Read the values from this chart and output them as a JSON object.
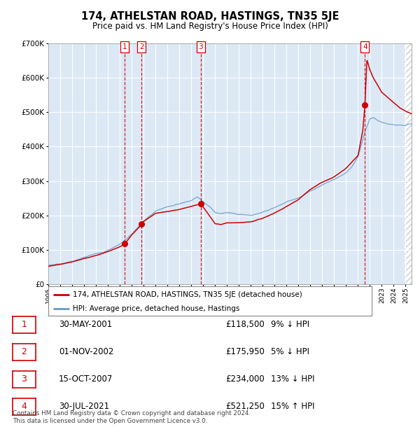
{
  "title": "174, ATHELSTAN ROAD, HASTINGS, TN35 5JE",
  "subtitle": "Price paid vs. HM Land Registry's House Price Index (HPI)",
  "hpi_label": "HPI: Average price, detached house, Hastings",
  "property_label": "174, ATHELSTAN ROAD, HASTINGS, TN35 5JE (detached house)",
  "footer": "Contains HM Land Registry data © Crown copyright and database right 2024.\nThis data is licensed under the Open Government Licence v3.0.",
  "plot_bg": "#dce9f5",
  "red_line_color": "#cc0000",
  "blue_line_color": "#6699cc",
  "transactions": [
    {
      "num": 1,
      "date_x": 2001.41,
      "price": 118500,
      "label": "30-MAY-2001",
      "price_str": "£118,500",
      "hpi_str": "9% ↓ HPI"
    },
    {
      "num": 2,
      "date_x": 2002.83,
      "price": 175950,
      "label": "01-NOV-2002",
      "price_str": "£175,950",
      "hpi_str": "5% ↓ HPI"
    },
    {
      "num": 3,
      "date_x": 2007.79,
      "price": 234000,
      "label": "15-OCT-2007",
      "price_str": "£234,000",
      "hpi_str": "13% ↓ HPI"
    },
    {
      "num": 4,
      "date_x": 2021.58,
      "price": 521250,
      "label": "30-JUL-2021",
      "price_str": "£521,250",
      "hpi_str": "15% ↑ HPI"
    }
  ],
  "ylim": [
    0,
    700000
  ],
  "xlim_start": 1995.0,
  "xlim_end": 2025.5,
  "yticks": [
    0,
    100000,
    200000,
    300000,
    400000,
    500000,
    600000,
    700000
  ],
  "ytick_labels": [
    "£0",
    "£100K",
    "£200K",
    "£300K",
    "£400K",
    "£500K",
    "£600K",
    "£700K"
  ]
}
